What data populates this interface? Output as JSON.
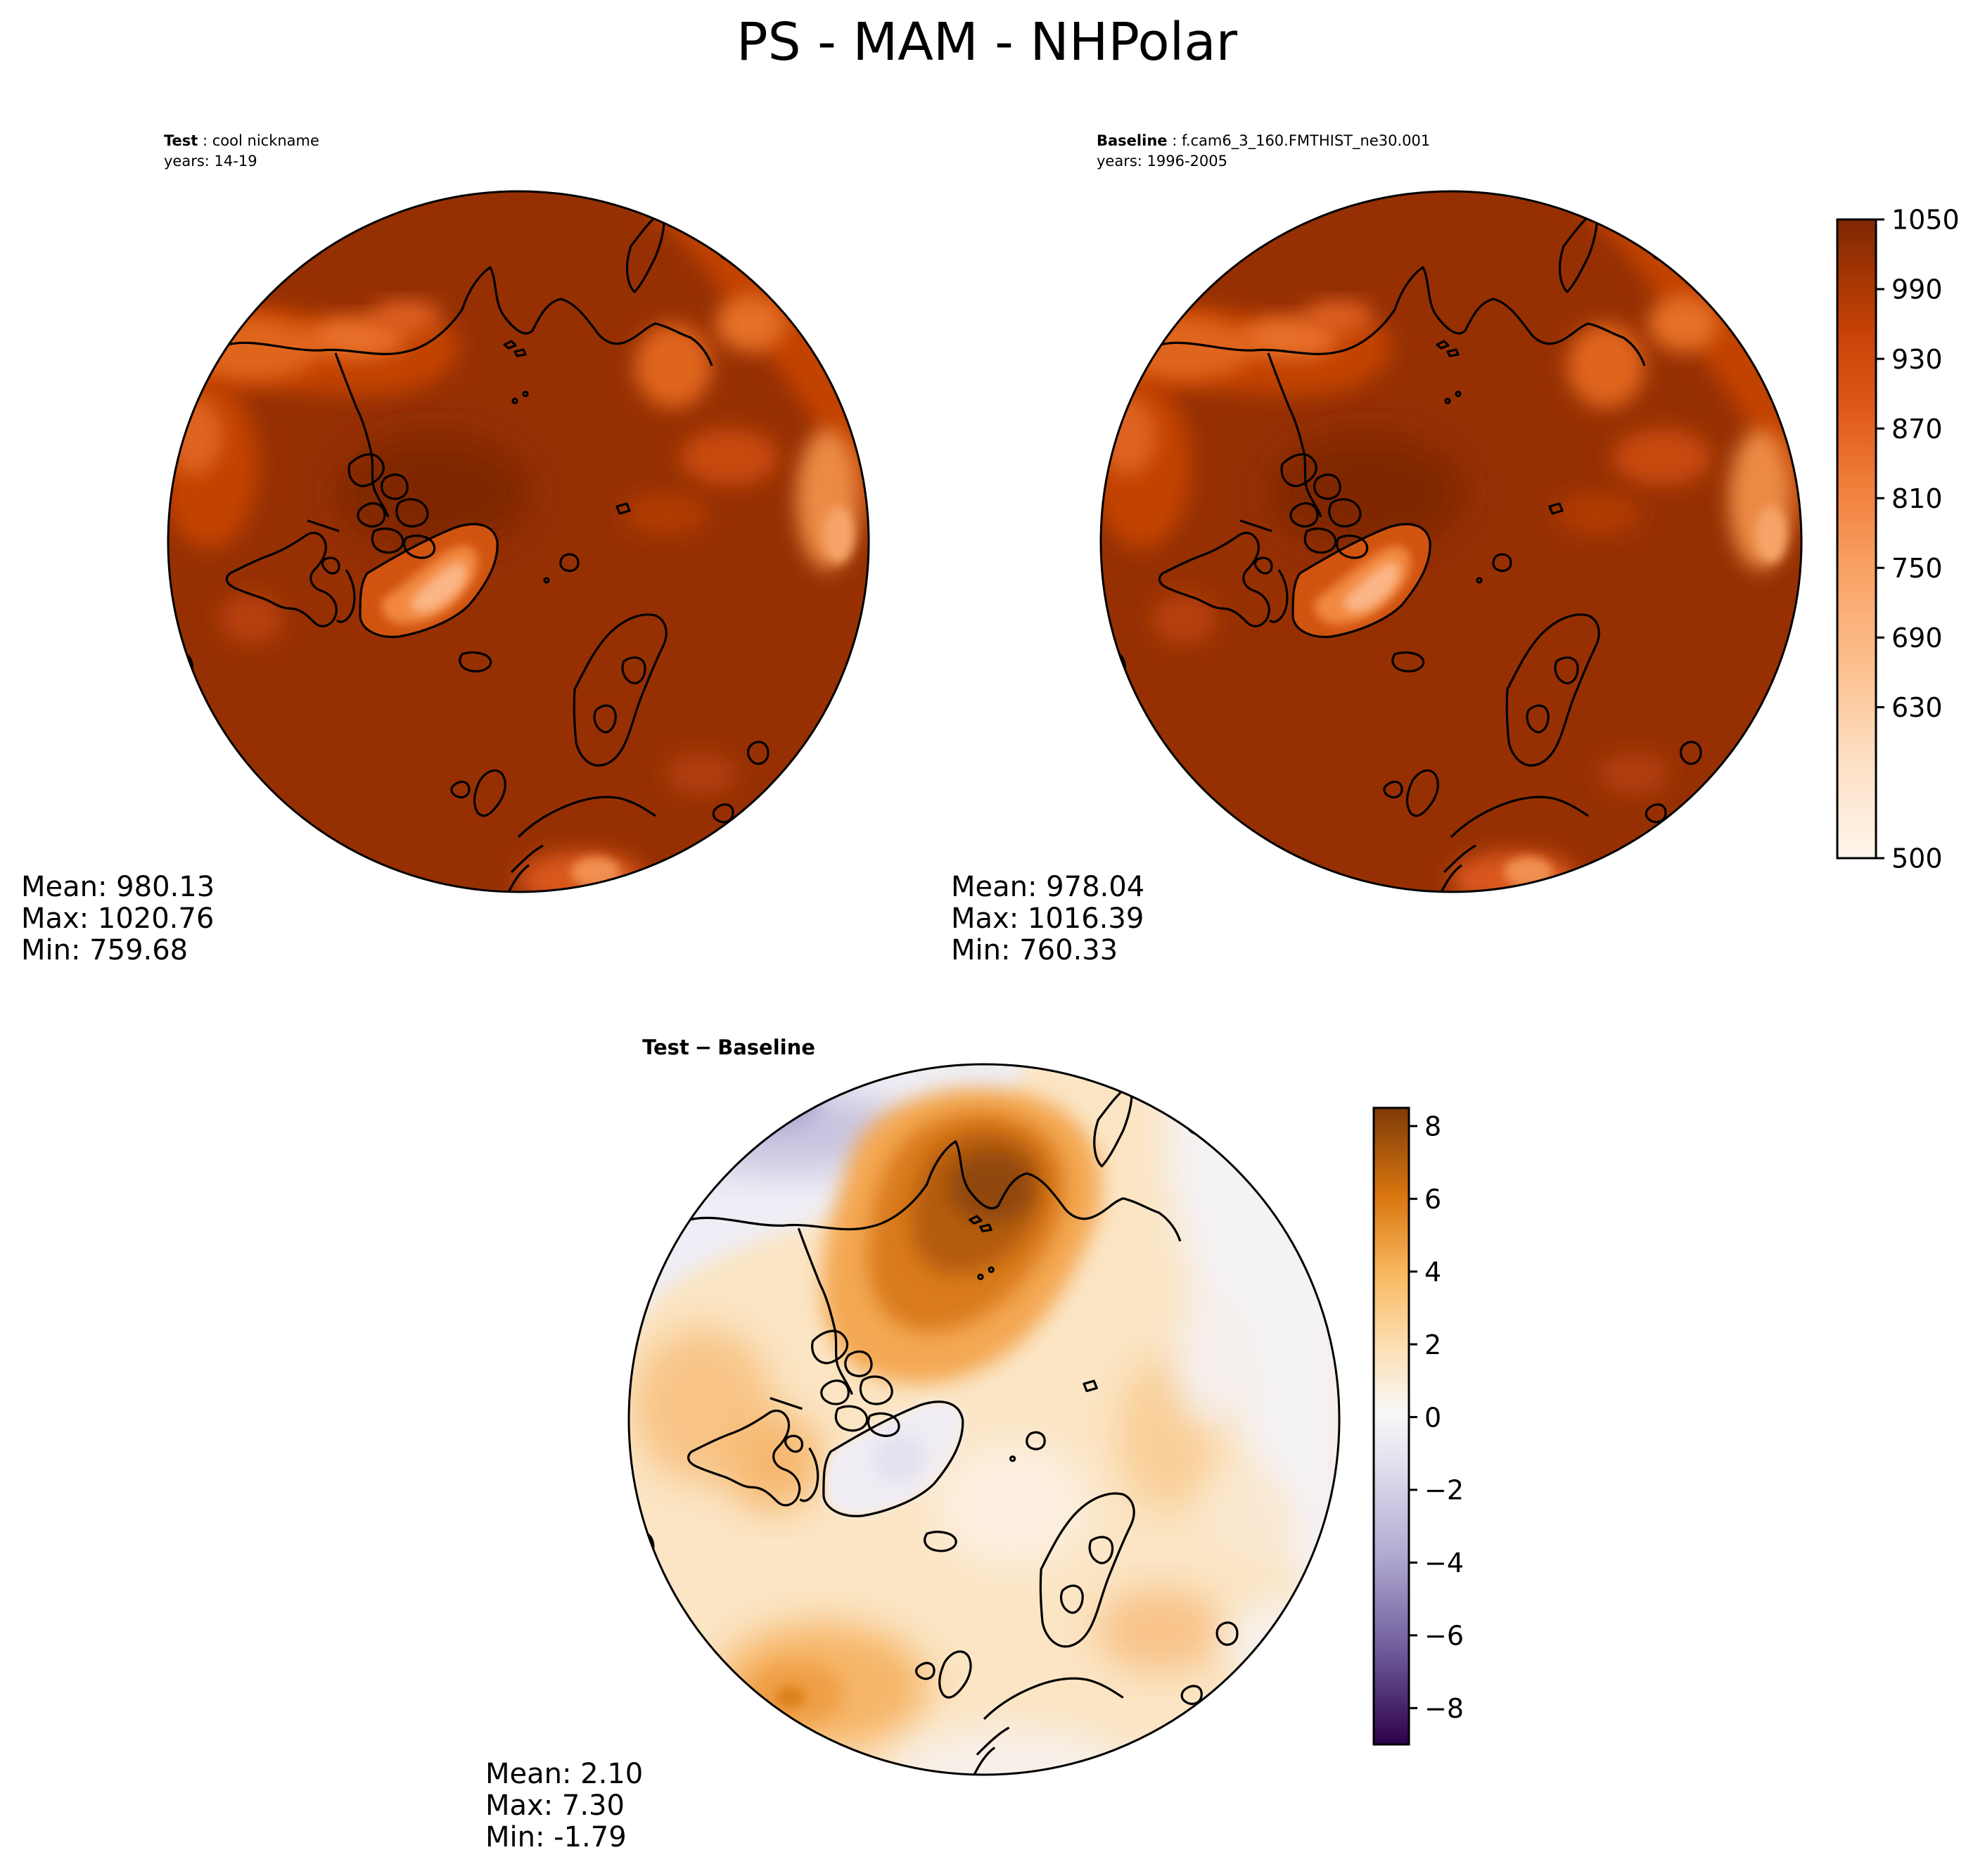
{
  "figure": {
    "title": "PS - MAM - NHPolar"
  },
  "panels": {
    "test": {
      "label_bold": "Test",
      "label_sep": " : ",
      "name": "cool nickname",
      "years": "years: 14-19",
      "stats": {
        "mean": "Mean: 980.13",
        "max": "Max: 1020.76",
        "min": "Min: 759.68"
      }
    },
    "baseline": {
      "label_bold": "Baseline",
      "label_sep": " : ",
      "name": "f.cam6_3_160.FMTHIST_ne30.001",
      "years": "years: 1996-2005",
      "stats": {
        "mean": "Mean: 978.04",
        "max": "Max: 1016.39",
        "min": "Min: 760.33"
      }
    },
    "diff": {
      "title_a": "Test",
      "title_op": "−",
      "title_b": "Baseline",
      "stats": {
        "mean": "Mean:  2.10",
        "max": "Max:  7.30",
        "min": "Min: -1.79"
      }
    }
  },
  "colorbars": {
    "abs": {
      "colormap": "Oranges",
      "range": [
        500,
        1050
      ],
      "tick_labels": [
        "1050",
        "990",
        "930",
        "870",
        "810",
        "750",
        "690",
        "630",
        "500"
      ]
    },
    "diff": {
      "colormap": "PuOr_r",
      "range": [
        -9,
        8.5
      ],
      "tick_labels": [
        "8",
        "6",
        "4",
        "2",
        "0",
        "−2",
        "−4",
        "−6",
        "−8"
      ]
    }
  },
  "colors": {
    "abs_high": "#7f2704",
    "abs_mid": "#e8590c",
    "abs_low": "#fff5eb",
    "diff_pos": "#7f3b08",
    "diff_zero": "#f7f7f7",
    "diff_neg": "#2d004b"
  }
}
